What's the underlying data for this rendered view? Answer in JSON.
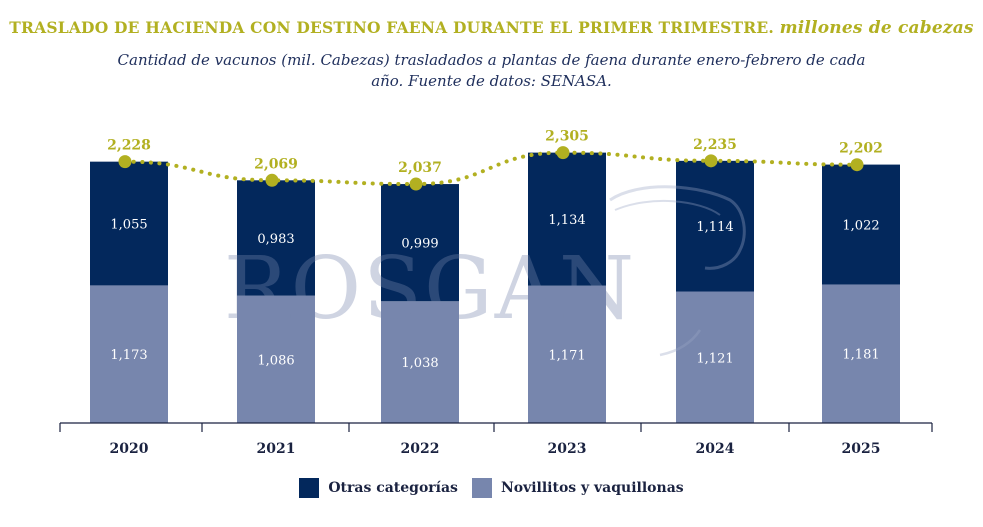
{
  "title": "TRASLADO DE HACIENDA CON DESTINO FAENA DURANTE EL PRIMER TRIMESTRE.",
  "title_unit": "millones de cabezas",
  "subtitle": "Cantidad de vacunos (mil. Cabezas) trasladados a plantas de faena durante enero-febrero de cada año. Fuente de datos: SENASA.",
  "watermark": "ROSGAN",
  "colors": {
    "otras": "#03285c",
    "novillitos": "#7786ad",
    "total": "#b2b021"
  },
  "chart_data": {
    "type": "bar",
    "stacked": true,
    "categories": [
      "2020",
      "2021",
      "2022",
      "2023",
      "2024",
      "2025"
    ],
    "series": [
      {
        "name": "Novillitos y vaquillonas",
        "values": [
          1.173,
          1.086,
          1.038,
          1.171,
          1.121,
          1.181
        ],
        "labels": [
          "1,173",
          "1,086",
          "1,038",
          "1,171",
          "1,121",
          "1,181"
        ]
      },
      {
        "name": "Otras categorías",
        "values": [
          1.055,
          0.983,
          0.999,
          1.134,
          1.114,
          1.022
        ],
        "labels": [
          "1,055",
          "0,983",
          "0,999",
          "1,134",
          "1,114",
          "1,022"
        ]
      }
    ],
    "line": {
      "type": "line",
      "values": [
        2.228,
        2.069,
        2.037,
        2.305,
        2.235,
        2.202
      ],
      "labels": [
        "2,228",
        "2,069",
        "2,037",
        "2,305",
        "2,235",
        "2,202"
      ]
    },
    "ylim": [
      0,
      2.4
    ],
    "grid": false,
    "legend": "bottom-center"
  },
  "legend": [
    {
      "label": "Otras categorías",
      "color": "#03285c"
    },
    {
      "label": "Novillitos y vaquillonas",
      "color": "#7786ad"
    }
  ]
}
